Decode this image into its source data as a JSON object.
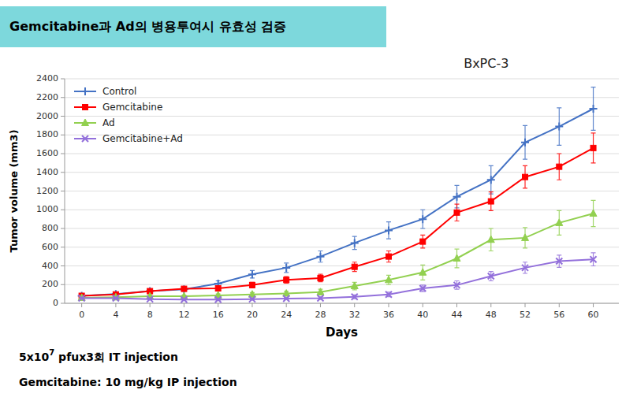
{
  "chart_data": {
    "type": "line",
    "title": "BxPC-3",
    "xlabel": "Days",
    "ylabel": "Tumor volume (mm3)",
    "annotations": [
      "Gemcitabine과 Ad의 병용투여시 유효성 검증",
      "5x10",
      "7",
      " pfux3회 IT injection",
      "Gemcitabine: 10 mg/kg IP injection"
    ],
    "x": [
      0,
      4,
      8,
      12,
      16,
      20,
      24,
      28,
      32,
      36,
      40,
      44,
      48,
      52,
      56,
      60
    ],
    "series": [
      {
        "name": "Control",
        "color": "#4472C4",
        "marker": "plus",
        "values": [
          80,
          100,
          130,
          150,
          210,
          310,
          380,
          500,
          645,
          780,
          900,
          1140,
          1320,
          1720,
          1890,
          2080
        ],
        "errors": [
          10,
          15,
          20,
          20,
          30,
          40,
          50,
          60,
          70,
          90,
          100,
          120,
          150,
          180,
          200,
          230
        ]
      },
      {
        "name": "Gemcitabine",
        "color": "#FF0000",
        "marker": "square",
        "values": [
          80,
          95,
          130,
          155,
          160,
          195,
          250,
          270,
          390,
          500,
          660,
          970,
          1090,
          1350,
          1460,
          1660
        ],
        "errors": [
          10,
          15,
          20,
          20,
          25,
          30,
          35,
          40,
          50,
          60,
          70,
          90,
          100,
          120,
          140,
          160
        ]
      },
      {
        "name": "Ad",
        "color": "#92D050",
        "marker": "triangle",
        "values": [
          60,
          65,
          75,
          75,
          85,
          95,
          105,
          120,
          185,
          250,
          330,
          480,
          680,
          700,
          860,
          960
        ],
        "errors": [
          10,
          10,
          12,
          12,
          15,
          20,
          25,
          30,
          40,
          50,
          80,
          100,
          120,
          110,
          130,
          140
        ]
      },
      {
        "name": "Gemcitabine+Ad",
        "color": "#9370DB",
        "marker": "x",
        "values": [
          55,
          55,
          45,
          40,
          40,
          45,
          50,
          55,
          70,
          95,
          160,
          195,
          290,
          380,
          450,
          470
        ],
        "errors": [
          8,
          8,
          8,
          8,
          10,
          10,
          12,
          15,
          20,
          25,
          35,
          45,
          50,
          60,
          65,
          70
        ]
      }
    ],
    "xlim": [
      -2,
      63
    ],
    "xticks": [
      0,
      4,
      8,
      12,
      16,
      20,
      24,
      28,
      32,
      36,
      40,
      44,
      48,
      52,
      56,
      60
    ],
    "ylim": [
      0,
      2400
    ],
    "yticks": [
      0,
      200,
      400,
      600,
      800,
      1000,
      1200,
      1400,
      1600,
      1800,
      2000,
      2200,
      2400
    ],
    "grid": true,
    "legend": "upper left"
  }
}
